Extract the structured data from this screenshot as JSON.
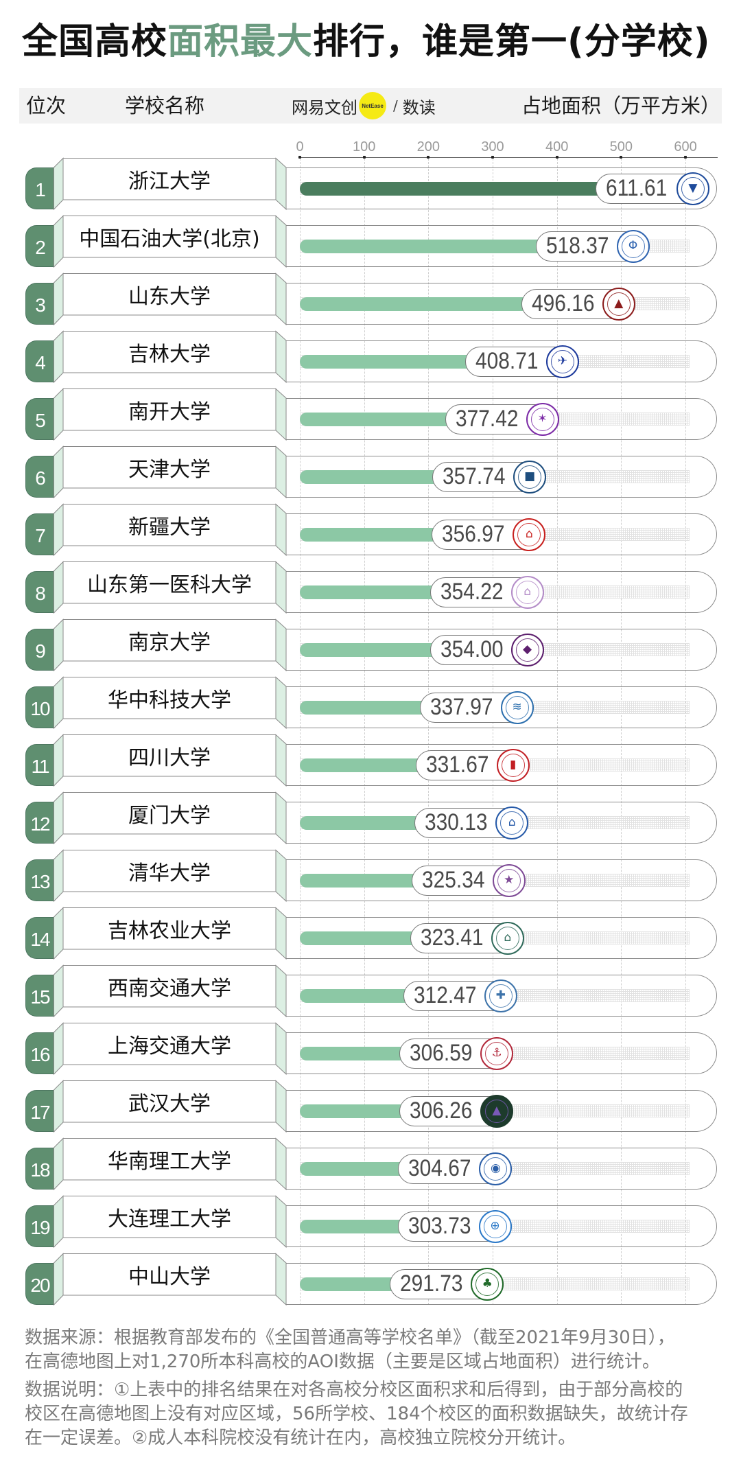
{
  "title": {
    "prefix": "全国高校",
    "highlight": "面积最大",
    "suffix": "排行，谁是第一(分学校)",
    "highlight_color": "#6b9b80"
  },
  "header": {
    "rank_label": "位次",
    "name_label": "学校名称",
    "brand": {
      "name": "网易文创",
      "badge": "NetEase",
      "separator": "/",
      "sub": "数读"
    },
    "value_label": "占地面积（万平方米）"
  },
  "colors": {
    "accent": "#5f8f70",
    "bar_highlight": "#4a7d5e",
    "bar": "#8cc8a5",
    "panel": "#dcefe3",
    "brand_yellow": "#f5ea14"
  },
  "chart_data": {
    "type": "bar",
    "orientation": "horizontal",
    "title": "全国高校面积最大排行，谁是第一(分学校)",
    "xlabel": "占地面积（万平方米）",
    "ylabel": "学校名称",
    "xlim": [
      0,
      650
    ],
    "x_ticks": [
      0,
      100,
      200,
      300,
      400,
      500,
      600
    ],
    "grid": true,
    "legend": null,
    "categories": [
      "浙江大学",
      "中国石油大学(北京)",
      "山东大学",
      "吉林大学",
      "南开大学",
      "天津大学",
      "新疆大学",
      "山东第一医科大学",
      "南京大学",
      "华中科技大学",
      "四川大学",
      "厦门大学",
      "清华大学",
      "吉林农业大学",
      "西南交通大学",
      "上海交通大学",
      "武汉大学",
      "华南理工大学",
      "大连理工大学",
      "中山大学"
    ],
    "values": [
      611.61,
      518.37,
      496.16,
      408.71,
      377.42,
      357.74,
      356.97,
      354.22,
      354.0,
      337.97,
      331.67,
      330.13,
      325.34,
      323.41,
      312.47,
      306.59,
      306.26,
      304.67,
      303.73,
      291.73
    ],
    "ranks": [
      1,
      2,
      3,
      4,
      5,
      6,
      7,
      8,
      9,
      10,
      11,
      12,
      13,
      14,
      15,
      16,
      17,
      18,
      19,
      20
    ]
  },
  "rows": [
    {
      "rank": "1",
      "name": "浙江大学",
      "value": "611.61",
      "highlight": true,
      "logo": {
        "icon": "zju-emblem-icon",
        "color": "#1e4b9b",
        "fill": "#ffffff",
        "glyph": "▼"
      }
    },
    {
      "rank": "2",
      "name": "中国石油大学(北京)",
      "value": "518.37",
      "highlight": false,
      "logo": {
        "icon": "cupb-emblem-icon",
        "color": "#2f64b0",
        "fill": "#ffffff",
        "glyph": "Φ"
      }
    },
    {
      "rank": "3",
      "name": "山东大学",
      "value": "496.16",
      "highlight": false,
      "logo": {
        "icon": "sdu-emblem-icon",
        "color": "#8c1c1c",
        "fill": "#ffffff",
        "glyph": "▲"
      }
    },
    {
      "rank": "4",
      "name": "吉林大学",
      "value": "408.71",
      "highlight": false,
      "logo": {
        "icon": "jlu-emblem-icon",
        "color": "#1d3a9c",
        "fill": "#ffffff",
        "glyph": "✈"
      }
    },
    {
      "rank": "5",
      "name": "南开大学",
      "value": "377.42",
      "highlight": false,
      "logo": {
        "icon": "nku-emblem-icon",
        "color": "#7b2aa6",
        "fill": "#ffffff",
        "glyph": "✶"
      }
    },
    {
      "rank": "6",
      "name": "天津大学",
      "value": "357.74",
      "highlight": false,
      "logo": {
        "icon": "tju-emblem-icon",
        "color": "#1e4e7e",
        "fill": "#ffffff",
        "glyph": "■"
      }
    },
    {
      "rank": "7",
      "name": "新疆大学",
      "value": "356.97",
      "highlight": false,
      "logo": {
        "icon": "xju-emblem-icon",
        "color": "#c8201e",
        "fill": "#ffffff",
        "glyph": "⌂"
      }
    },
    {
      "rank": "8",
      "name": "山东第一医科大学",
      "value": "354.22",
      "highlight": false,
      "logo": {
        "icon": "sdfmu-emblem-icon",
        "color": "#b48cc8",
        "fill": "#ffffff",
        "glyph": "⌂"
      }
    },
    {
      "rank": "9",
      "name": "南京大学",
      "value": "354.00",
      "highlight": false,
      "logo": {
        "icon": "nju-emblem-icon",
        "color": "#5d1f6e",
        "fill": "#ffffff",
        "glyph": "◆"
      }
    },
    {
      "rank": "10",
      "name": "华中科技大学",
      "value": "337.97",
      "highlight": false,
      "logo": {
        "icon": "hust-emblem-icon",
        "color": "#2c6fae",
        "fill": "#ffffff",
        "glyph": "≋"
      }
    },
    {
      "rank": "11",
      "name": "四川大学",
      "value": "331.67",
      "highlight": false,
      "logo": {
        "icon": "scu-emblem-icon",
        "color": "#c21f24",
        "fill": "#ffffff",
        "glyph": "▮"
      }
    },
    {
      "rank": "12",
      "name": "厦门大学",
      "value": "330.13",
      "highlight": false,
      "logo": {
        "icon": "xmu-emblem-icon",
        "color": "#2559a8",
        "fill": "#ffffff",
        "glyph": "⌂"
      }
    },
    {
      "rank": "13",
      "name": "清华大学",
      "value": "325.34",
      "highlight": false,
      "logo": {
        "icon": "thu-emblem-icon",
        "color": "#7e4a96",
        "fill": "#ffffff",
        "glyph": "★"
      }
    },
    {
      "rank": "14",
      "name": "吉林农业大学",
      "value": "323.41",
      "highlight": false,
      "logo": {
        "icon": "jlau-emblem-icon",
        "color": "#2f6a5a",
        "fill": "#ffffff",
        "glyph": "⌂"
      }
    },
    {
      "rank": "15",
      "name": "西南交通大学",
      "value": "312.47",
      "highlight": false,
      "logo": {
        "icon": "swjtu-emblem-icon",
        "color": "#3d73aa",
        "fill": "#ffffff",
        "glyph": "✚"
      }
    },
    {
      "rank": "16",
      "name": "上海交通大学",
      "value": "306.59",
      "highlight": false,
      "logo": {
        "icon": "sjtu-emblem-icon",
        "color": "#b2283a",
        "fill": "#ffffff",
        "glyph": "⚓"
      }
    },
    {
      "rank": "17",
      "name": "武汉大学",
      "value": "306.26",
      "highlight": false,
      "logo": {
        "icon": "whu-emblem-icon",
        "color": "#1d3b2c",
        "fill": "#1d3b2c",
        "glyph": "▲",
        "glyph_color": "#7a5ab8"
      }
    },
    {
      "rank": "18",
      "name": "华南理工大学",
      "value": "304.67",
      "highlight": false,
      "logo": {
        "icon": "scut-emblem-icon",
        "color": "#2c5fa8",
        "fill": "#ffffff",
        "glyph": "◉"
      }
    },
    {
      "rank": "19",
      "name": "大连理工大学",
      "value": "303.73",
      "highlight": false,
      "logo": {
        "icon": "dlut-emblem-icon",
        "color": "#2a78c8",
        "fill": "#ffffff",
        "glyph": "⊕"
      }
    },
    {
      "rank": "20",
      "name": "中山大学",
      "value": "291.73",
      "highlight": false,
      "logo": {
        "icon": "sysu-emblem-icon",
        "color": "#216b2a",
        "fill": "#ffffff",
        "glyph": "♣"
      }
    }
  ],
  "footnotes": {
    "source": [
      "数据来源：根据教育部发布的《全国普通高等学校名单》（截至2021年9月30日），",
      "在高德地图上对1,270所本科高校的AOI数据（主要是区域占地面积）进行统计。"
    ],
    "explanation": [
      "数据说明：①上表中的排名结果在对各高校分校区面积求和后得到，由于部分高校的",
      "校区在高德地图上没有对应区域，56所学校、184个校区的面积数据缺失，故统计存",
      "在一定误差。②成人本科院校没有统计在内，高校独立院校分开统计。"
    ]
  }
}
